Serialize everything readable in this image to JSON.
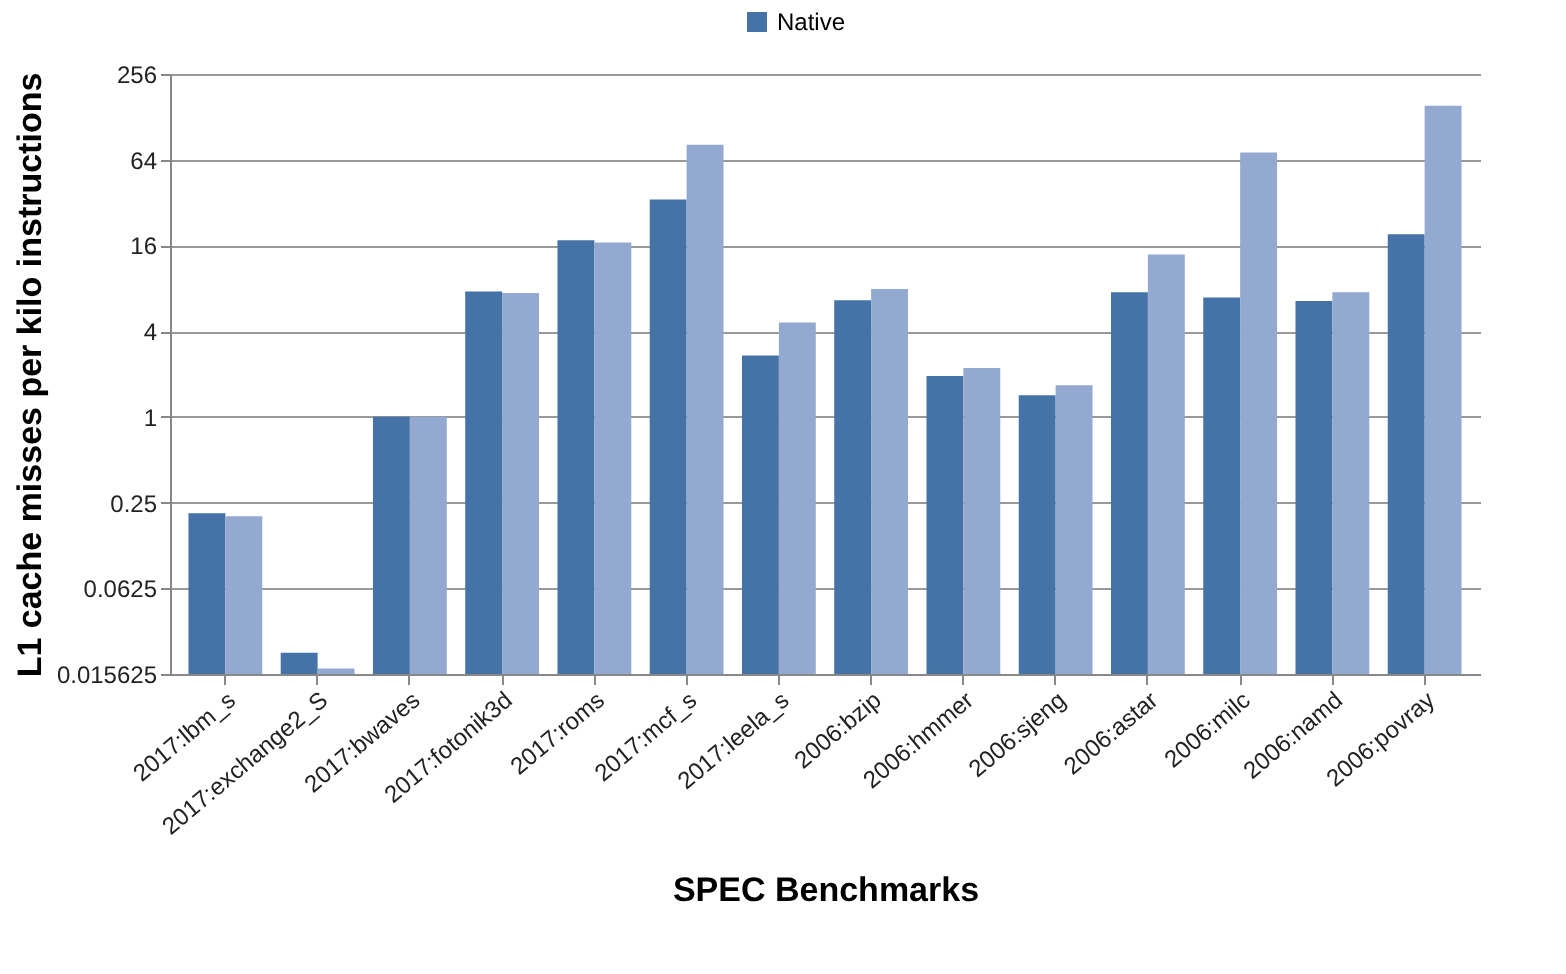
{
  "chart_data": {
    "type": "bar",
    "xlabel": "SPEC Benchmarks",
    "ylabel": "L1 cache misses per kilo instructions",
    "categories": [
      "2017:lbm_s",
      "2017:exchange2_S",
      "2017:bwaves",
      "2017:fotonik3d",
      "2017:roms",
      "2017:mcf_s",
      "2017:leela_s",
      "2006:bzip",
      "2006:hmmer",
      "2006:sjeng",
      "2006:astar",
      "2006:milc",
      "2006:namd",
      "2006:povray"
    ],
    "series": [
      {
        "name": "Native",
        "color": "#4572a7",
        "values": [
          0.21,
          0.022,
          1.0,
          7.6,
          17.4,
          33.6,
          2.7,
          6.6,
          1.94,
          1.42,
          7.5,
          6.9,
          6.5,
          19.2
        ]
      },
      {
        "color": "#93a9cf",
        "values": [
          0.2,
          0.0171,
          1.0,
          7.4,
          16.8,
          81.6,
          4.6,
          7.9,
          2.2,
          1.67,
          13.8,
          72,
          7.5,
          153
        ]
      }
    ],
    "log": "y",
    "ylim": [
      0.015625,
      256
    ],
    "yticks": [
      0.015625,
      0.0625,
      0.25,
      1,
      4,
      16,
      64,
      256
    ],
    "grid": "y",
    "legend": "top"
  }
}
